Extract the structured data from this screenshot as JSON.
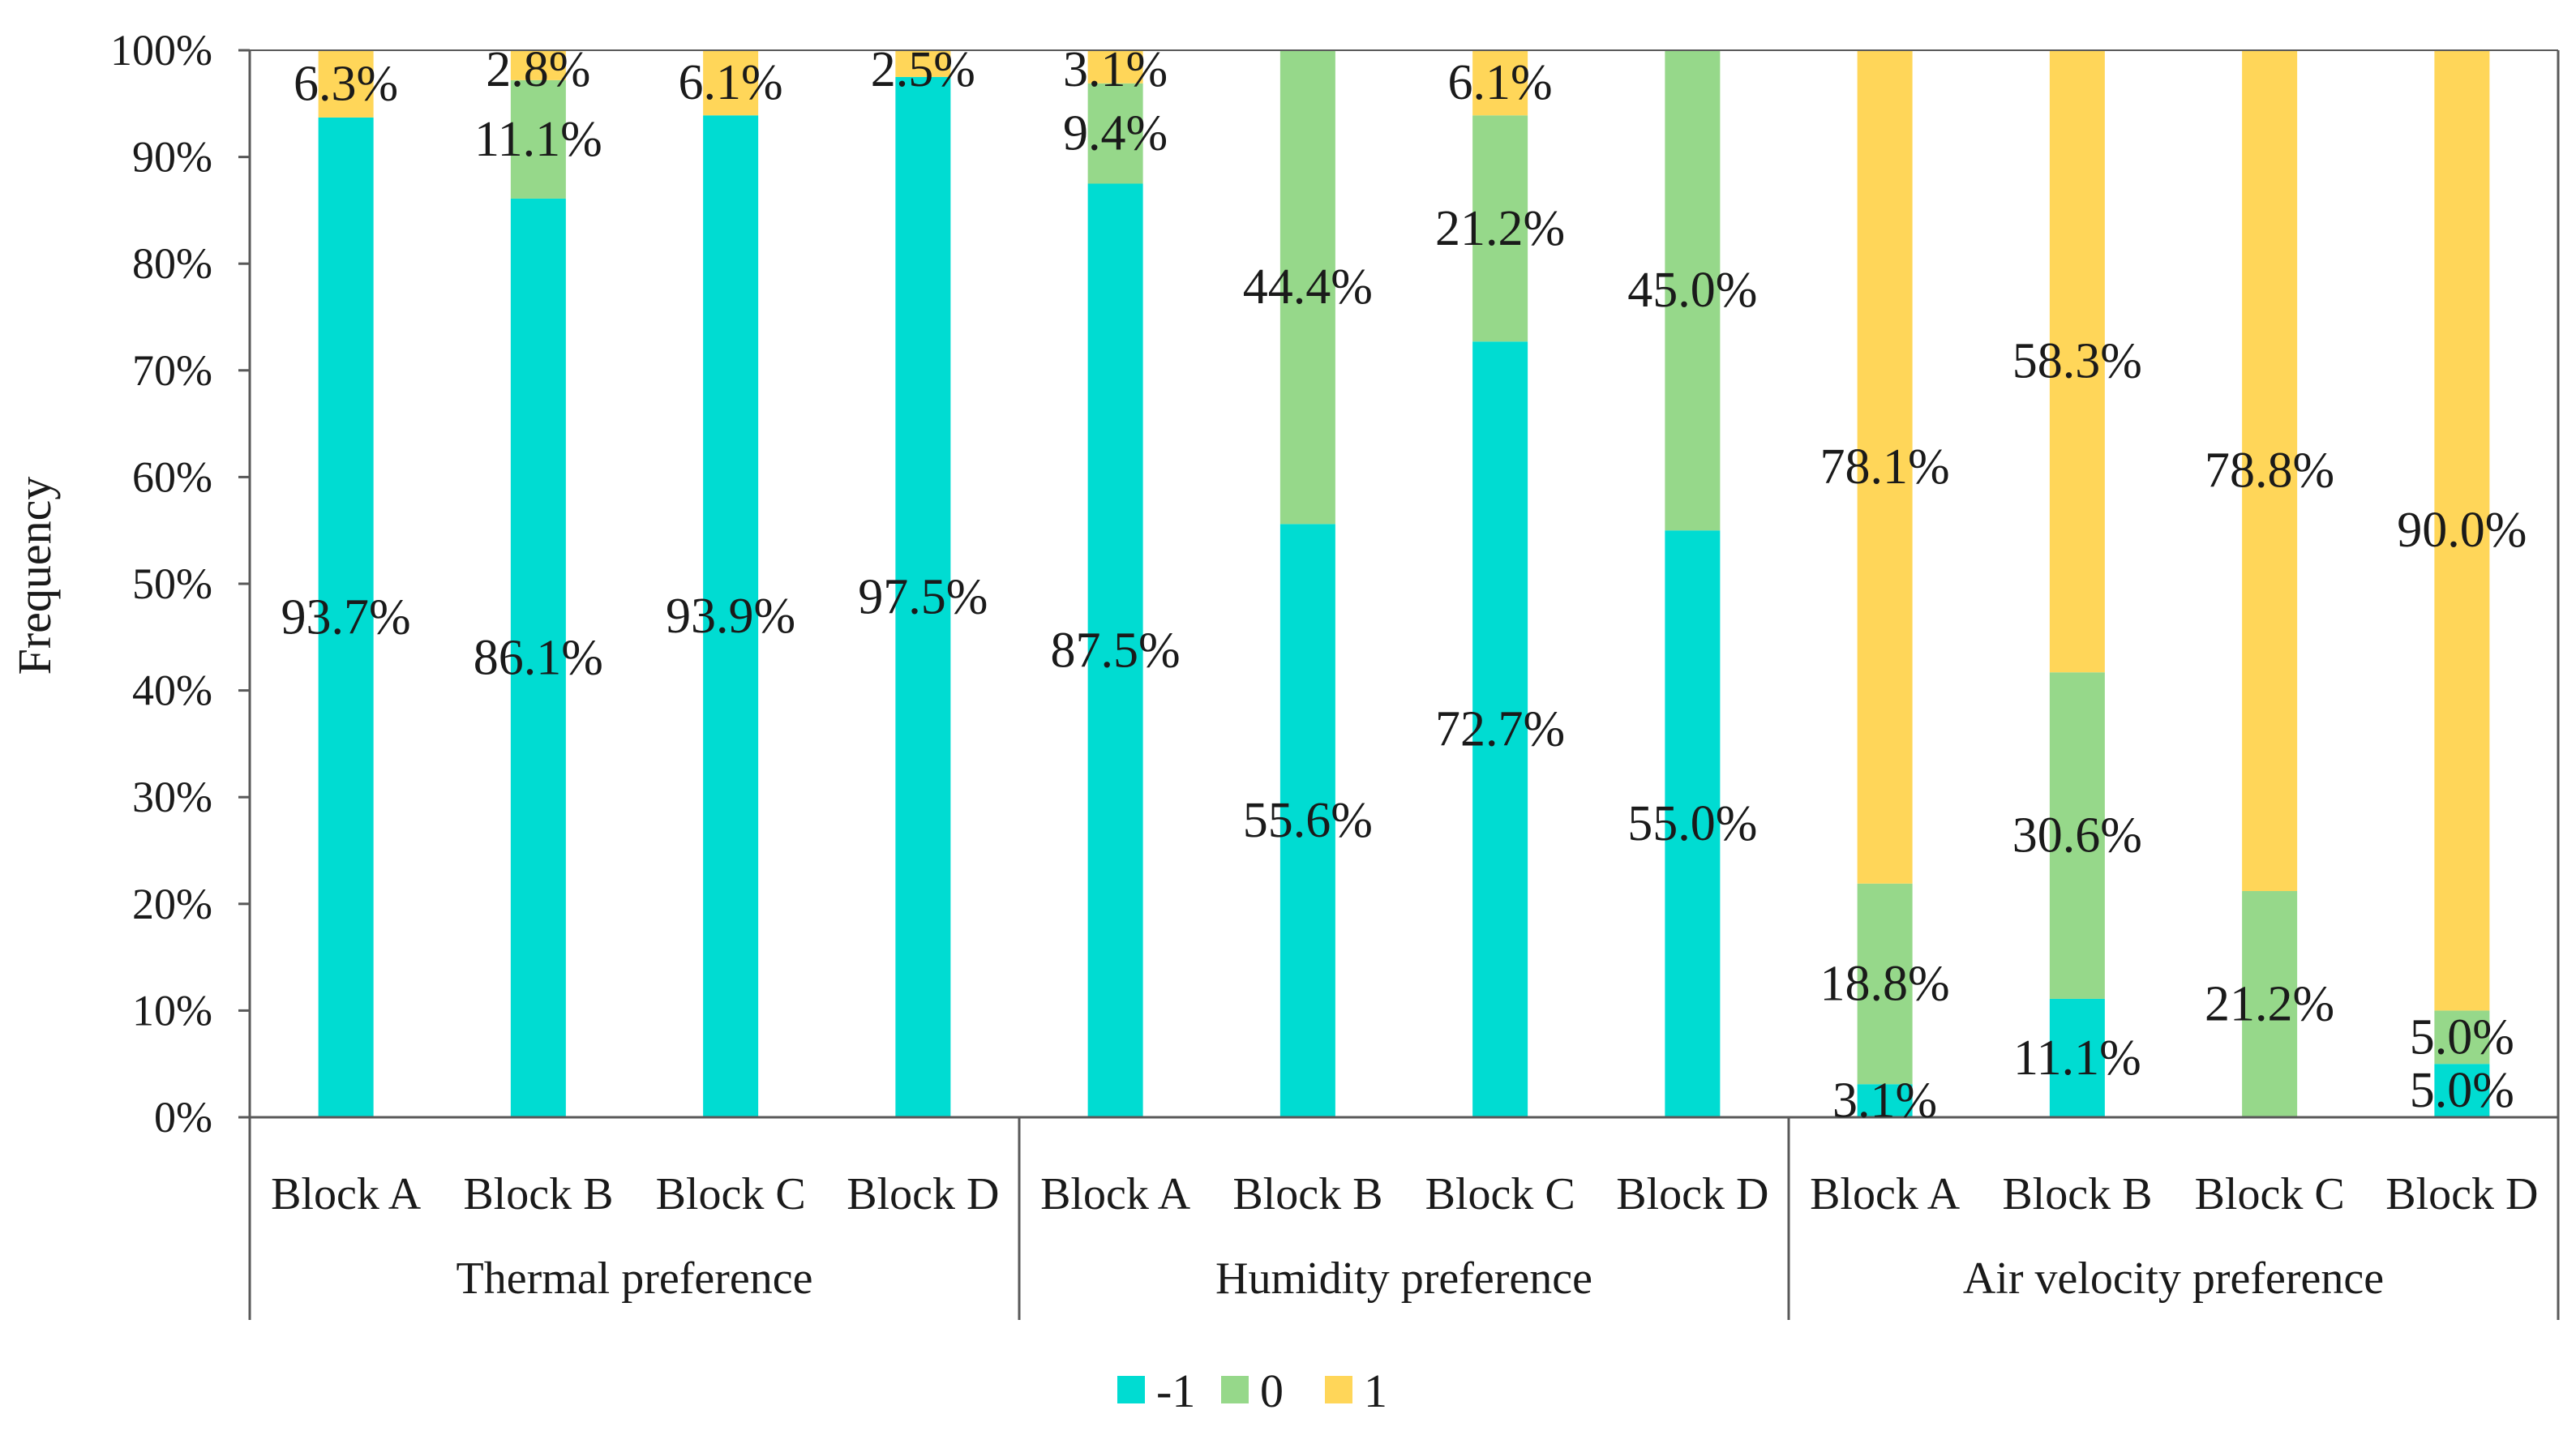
{
  "chart_data": {
    "type": "bar",
    "stacked": true,
    "percent_stacked": true,
    "ylabel": "Frequency",
    "ylim": [
      0,
      100
    ],
    "yticks": [
      "0%",
      "10%",
      "20%",
      "30%",
      "40%",
      "50%",
      "60%",
      "70%",
      "80%",
      "90%",
      "100%"
    ],
    "groups": [
      {
        "name": "Thermal preference",
        "categories": [
          "Block A",
          "Block B",
          "Block C",
          "Block D"
        ]
      },
      {
        "name": "Humidity preference",
        "categories": [
          "Block A",
          "Block B",
          "Block C",
          "Block D"
        ]
      },
      {
        "name": "Air velocity preference",
        "categories": [
          "Block A",
          "Block B",
          "Block C",
          "Block D"
        ]
      }
    ],
    "series": [
      {
        "name": "-1",
        "color": "#00DCD2",
        "values": [
          93.7,
          86.1,
          93.9,
          97.5,
          87.5,
          55.6,
          72.7,
          55.0,
          3.1,
          11.1,
          0,
          5.0
        ],
        "labels": [
          "93.7%",
          "86.1%",
          "93.9%",
          "97.5%",
          "87.5%",
          "55.6%",
          "72.7%",
          "55.0%",
          "3.1%",
          "11.1%",
          "",
          "5.0%"
        ]
      },
      {
        "name": "0",
        "color": "#96D88A",
        "values": [
          0,
          11.1,
          0,
          0,
          9.4,
          44.4,
          21.2,
          45.0,
          18.8,
          30.6,
          21.2,
          5.0
        ],
        "labels": [
          "",
          "11.1%",
          "",
          "",
          "9.4%",
          "44.4%",
          "21.2%",
          "45.0%",
          "18.8%",
          "30.6%",
          "21.2%",
          "5.0%"
        ]
      },
      {
        "name": "1",
        "color": "#FFD659",
        "values": [
          6.3,
          2.8,
          6.1,
          2.5,
          3.1,
          0,
          6.1,
          0,
          78.1,
          58.3,
          78.8,
          90.0
        ],
        "labels": [
          "6.3%",
          "2.8%",
          "6.1%",
          "2.5%",
          "3.1%",
          "",
          "6.1%",
          "",
          "78.1%",
          "58.3%",
          "78.8%",
          "90.0%"
        ]
      }
    ],
    "legend": [
      "-1",
      "0",
      "1"
    ],
    "legend_position": "bottom-center",
    "grid": false
  }
}
